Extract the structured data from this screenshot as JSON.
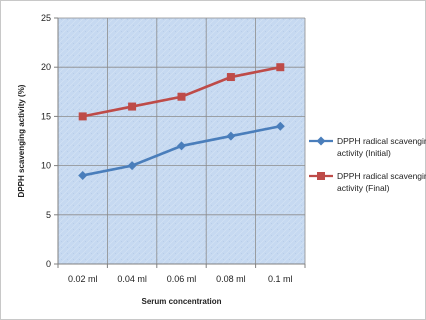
{
  "chart_data": {
    "type": "line",
    "title": "",
    "xlabel": "Serum concentration",
    "ylabel": "DPPH scavenging activity (%)",
    "categories": [
      "0.02 ml",
      "0.04 ml",
      "0.06 ml",
      "0.08 ml",
      "0.1 ml"
    ],
    "ylim": [
      0,
      25
    ],
    "yticks": [
      0,
      5,
      10,
      15,
      20,
      25
    ],
    "grid": true,
    "legend_position": "right",
    "series": [
      {
        "name": "DPPH radical scavenging activity (Initial)",
        "legend_lines": [
          "DPPH radical scavenging",
          "activity (Initial)"
        ],
        "values": [
          9,
          10,
          12,
          13,
          14
        ],
        "color": "#4a7ebb",
        "marker": "diamond"
      },
      {
        "name": "DPPH radical scavenging activity (Final)",
        "legend_lines": [
          "DPPH radical scavenging",
          "activity (Final)"
        ],
        "values": [
          15,
          16,
          17,
          19,
          20
        ],
        "color": "#be4b48",
        "marker": "square"
      }
    ],
    "plot_background": "#c6d9f1",
    "grid_color": "#8c8c8c"
  }
}
